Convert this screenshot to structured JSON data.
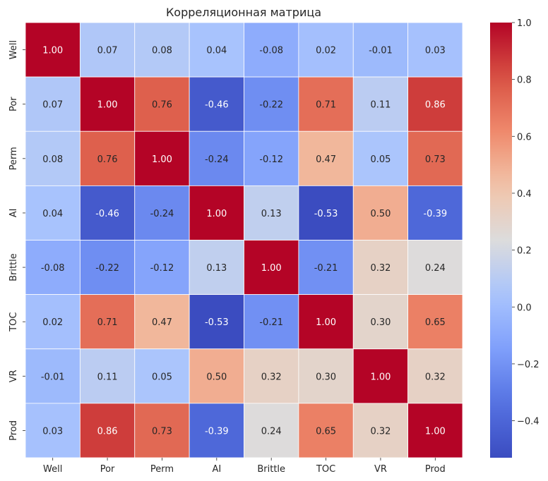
{
  "chart_data": {
    "type": "heatmap",
    "title": "Корреляционная матрица",
    "x_labels": [
      "Well",
      "Por",
      "Perm",
      "AI",
      "Brittle",
      "TOC",
      "VR",
      "Prod"
    ],
    "y_labels": [
      "Well",
      "Por",
      "Perm",
      "AI",
      "Brittle",
      "TOC",
      "VR",
      "Prod"
    ],
    "values": [
      [
        1.0,
        0.07,
        0.08,
        0.04,
        -0.08,
        0.02,
        -0.01,
        0.03
      ],
      [
        0.07,
        1.0,
        0.76,
        -0.46,
        -0.22,
        0.71,
        0.11,
        0.86
      ],
      [
        0.08,
        0.76,
        1.0,
        -0.24,
        -0.12,
        0.47,
        0.05,
        0.73
      ],
      [
        0.04,
        -0.46,
        -0.24,
        1.0,
        0.13,
        -0.53,
        0.5,
        -0.39
      ],
      [
        -0.08,
        -0.22,
        -0.12,
        0.13,
        1.0,
        -0.21,
        0.32,
        0.24
      ],
      [
        0.02,
        0.71,
        0.47,
        -0.53,
        -0.21,
        1.0,
        0.3,
        0.65
      ],
      [
        -0.01,
        0.11,
        0.05,
        0.5,
        0.32,
        0.3,
        1.0,
        0.32
      ],
      [
        0.03,
        0.86,
        0.73,
        -0.39,
        0.24,
        0.65,
        0.32,
        1.0
      ]
    ],
    "annotation_format": "2 decimals",
    "colormap": "coolwarm",
    "color_range": [
      -0.53,
      1.0
    ],
    "colorbar": {
      "ticks": [
        -0.4,
        -0.2,
        0.0,
        0.2,
        0.4,
        0.6,
        0.8,
        1.0
      ],
      "tick_labels": [
        "−0.4",
        "−0.2",
        "0.0",
        "0.2",
        "0.4",
        "0.6",
        "0.8",
        "1.0"
      ],
      "placement": "right"
    },
    "grid": false,
    "cell_separator_color": "#ffffff"
  }
}
